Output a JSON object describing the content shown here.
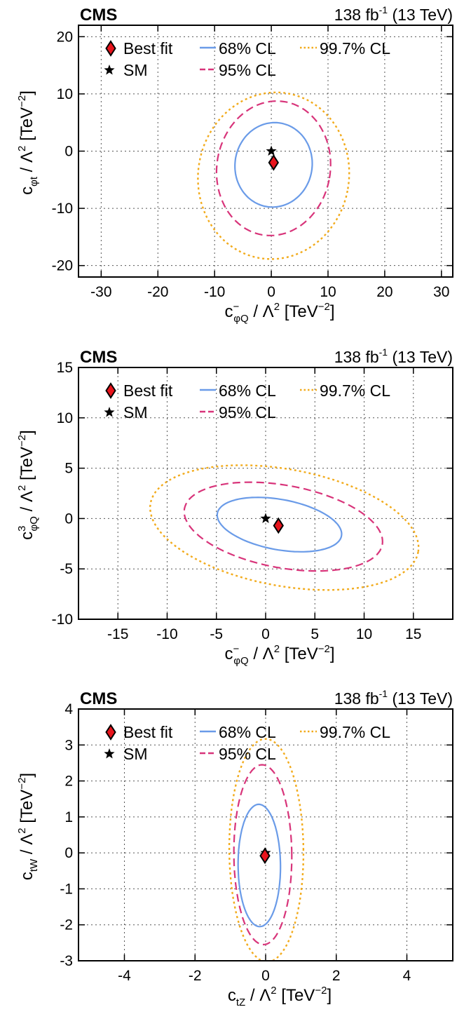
{
  "header": {
    "experiment": "CMS",
    "lumi": "138",
    "lumi_unit": "fb",
    "lumi_exp": "-1",
    "energy": "(13 TeV)"
  },
  "legend": {
    "best_fit": "Best fit",
    "sm": "SM",
    "cl68": "68% CL",
    "cl95": "95% CL",
    "cl997": "99.7% CL"
  },
  "colors": {
    "cl68": "#6a9be8",
    "cl95": "#d8347a",
    "cl997": "#f2ab1c",
    "best_fit": "#e8141c",
    "grid": "#555555",
    "frame": "#000000"
  },
  "chart_data": [
    {
      "type": "scatter",
      "x": "c_phiQ_minus",
      "y": "c_phit",
      "xlabel": "c⁻φQ / Λ² [TeV⁻²]",
      "ylabel": "cφt / Λ² [TeV⁻²]",
      "xlim": [
        -34,
        32
      ],
      "ylim": [
        -22,
        22
      ],
      "xticks": [
        -30,
        -20,
        -10,
        0,
        10,
        20,
        30
      ],
      "yticks": [
        -20,
        -10,
        0,
        10,
        20
      ],
      "grid": true,
      "legend_position": "top-left",
      "best_fit": [
        0.4,
        -2.0
      ],
      "sm": [
        0,
        0
      ],
      "contours": [
        {
          "cl": "68% CL",
          "center": [
            0.4,
            -2.4
          ],
          "radii": [
            6.8,
            7.4
          ],
          "angle": -10
        },
        {
          "cl": "95% CL",
          "center": [
            0.4,
            -3.0
          ],
          "radii": [
            10.0,
            11.8
          ],
          "angle": -10
        },
        {
          "cl": "99.7% CL",
          "center": [
            0.4,
            -4.3
          ],
          "radii": [
            13.3,
            14.6
          ],
          "angle": -10
        }
      ]
    },
    {
      "type": "scatter",
      "x": "c_phiQ_minus",
      "y": "c_phiQ_3",
      "xlabel": "c⁻φQ / Λ² [TeV⁻²]",
      "ylabel": "c³φQ / Λ² [TeV⁻²]",
      "xlim": [
        -19,
        19
      ],
      "ylim": [
        -10,
        15
      ],
      "xticks": [
        -15,
        -10,
        -5,
        0,
        5,
        10,
        15
      ],
      "yticks": [
        -10,
        -5,
        0,
        5,
        10,
        15
      ],
      "grid": true,
      "legend_position": "top-left",
      "best_fit": [
        1.3,
        -0.7
      ],
      "sm": [
        0,
        0
      ],
      "contours": [
        {
          "cl": "68% CL",
          "center": [
            1.4,
            -0.6
          ],
          "radii": [
            6.4,
            2.5
          ],
          "angle": -10
        },
        {
          "cl": "95% CL",
          "center": [
            1.8,
            -0.8
          ],
          "radii": [
            10.2,
            4.1
          ],
          "angle": -10
        },
        {
          "cl": "99.7% CL",
          "center": [
            1.9,
            -0.9
          ],
          "radii": [
            13.8,
            5.8
          ],
          "angle": -10
        }
      ]
    },
    {
      "type": "scatter",
      "x": "c_tZ",
      "y": "c_tW",
      "xlabel": "ctZ / Λ² [TeV⁻²]",
      "ylabel": "ctW / Λ² [TeV⁻²]",
      "xlim": [
        -5.3,
        5.3
      ],
      "ylim": [
        -3,
        4
      ],
      "xticks": [
        -4,
        -2,
        0,
        2,
        4
      ],
      "yticks": [
        -3,
        -2,
        -1,
        0,
        1,
        2,
        3,
        4
      ],
      "grid": true,
      "legend_position": "top-left",
      "best_fit": [
        -0.02,
        -0.08
      ],
      "sm": [
        0,
        0
      ],
      "contours": [
        {
          "cl": "68% CL",
          "center": [
            -0.18,
            -0.35
          ],
          "radii": [
            0.6,
            1.7
          ],
          "angle": 0.5
        },
        {
          "cl": "95% CL",
          "center": [
            -0.08,
            -0.05
          ],
          "radii": [
            0.82,
            2.5
          ],
          "angle": 0.5
        },
        {
          "cl": "99.7% CL",
          "center": [
            0.02,
            0.07
          ],
          "radii": [
            1.05,
            3.1
          ],
          "angle": 0.5
        }
      ]
    }
  ]
}
